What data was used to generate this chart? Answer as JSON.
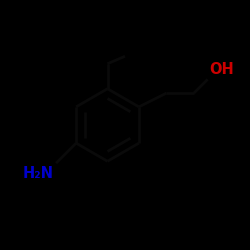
{
  "background_color": "#000000",
  "bond_color": "#101010",
  "oh_color": "#cc0000",
  "nh2_color": "#0000cc",
  "oh_label": "OH",
  "nh2_label": "H₂N",
  "figsize": [
    2.5,
    2.5
  ],
  "dpi": 100
}
